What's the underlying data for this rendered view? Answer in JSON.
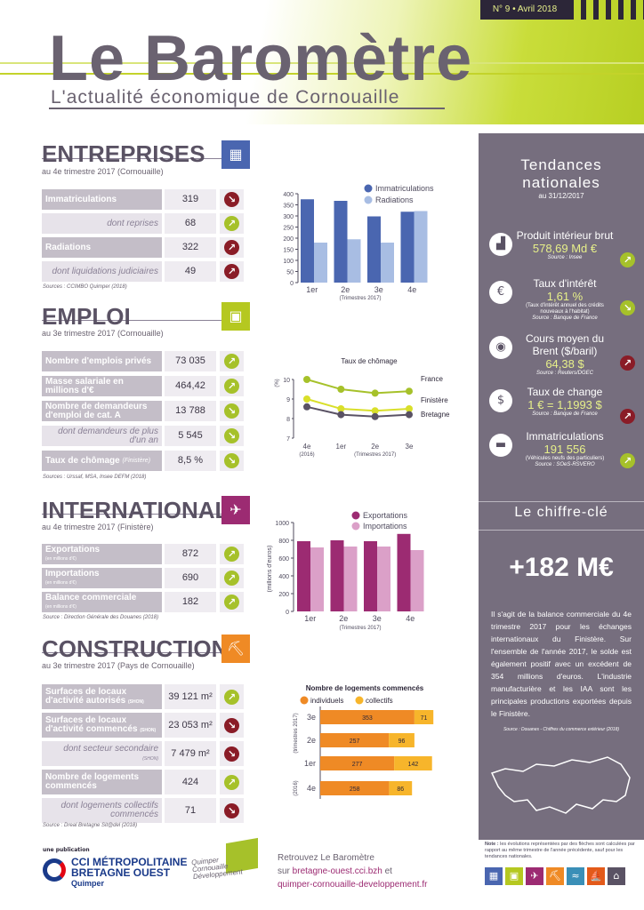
{
  "header": {
    "issue": "N° 9 • Avril 2018",
    "title": "Le Baromètre",
    "subtitle": "L'actualité économique de Cornouaille"
  },
  "entreprises": {
    "title": "ENTREPRISES",
    "period": "au 4e trimestre 2017 (Cornouaille)",
    "rows": [
      {
        "label": "Immatriculations",
        "value": "319"
      },
      {
        "label": "dont reprises",
        "value": "68"
      },
      {
        "label": "Radiations",
        "value": "322"
      },
      {
        "label": "dont liquidations judiciaires",
        "value": "49"
      }
    ],
    "source": "Sources : CCIMBO Quimper (2018)"
  },
  "emploi": {
    "title": "EMPLOI",
    "period": "au 3e trimestre 2017 (Cornouaille)",
    "rows": [
      {
        "label": "Nombre d'emplois privés",
        "value": "73 035"
      },
      {
        "label": "Masse salariale en millions d'€",
        "value": "464,42"
      },
      {
        "label": "Nombre de demandeurs d'emploi de cat. A",
        "value": "13 788"
      },
      {
        "label": "dont demandeurs de plus d'un an",
        "value": "5 545"
      },
      {
        "label": "Taux de chômage",
        "label_note": "(Finistère)",
        "value": "8,5 %"
      }
    ],
    "source": "Sources : Urssaf, MSA, Insee DEFM (2018)"
  },
  "international": {
    "title": "INTERNATIONAL",
    "period": "au 4e trimestre 2017 (Finistère)",
    "rows": [
      {
        "label": "Exportations",
        "note": "(en millions d'€)",
        "value": "872"
      },
      {
        "label": "Importations",
        "note": "(en millions d'€)",
        "value": "690"
      },
      {
        "label": "Balance commerciale",
        "note": "(en millions d'€)",
        "value": "182"
      }
    ],
    "source": "Source : Direction Générale des Douanes (2018)"
  },
  "construction": {
    "title": "CONSTRUCTION",
    "period": "au 3e trimestre 2017 (Pays de Cornouaille)",
    "rows": [
      {
        "label": "Surfaces de locaux d'activité autorisés",
        "note": "(SHON)",
        "value": "39 121 m²"
      },
      {
        "label": "Surfaces de locaux d'activité commencés",
        "note": "(SHON)",
        "value": "23 053 m²"
      },
      {
        "label": "dont secteur secondaire",
        "note": "(SHON)",
        "value": "7 479 m²"
      },
      {
        "label": "Nombre de logements commencés",
        "note": "",
        "value": "424"
      },
      {
        "label": "dont logements collectifs commencés",
        "note": "",
        "value": "71"
      }
    ],
    "source": "Source : Dreal Bretagne Sit@del (2018)"
  },
  "colors": {
    "purple": "#5a5264",
    "green": "#a6c12a",
    "red": "#8a1c27",
    "blue": "#4a66b0",
    "lightblue": "#a8bde3",
    "magenta": "#9c2b72",
    "pink": "#dba0c8",
    "orange": "#ef8a25",
    "yellow": "#f7b52b"
  },
  "chart_data": [
    {
      "type": "bar",
      "categories": [
        "1er",
        "2e",
        "3e",
        "4e"
      ],
      "xlabel": "(Trimestres 2017)",
      "series": [
        {
          "name": "Immatriculations",
          "values": [
            375,
            368,
            298,
            319
          ]
        },
        {
          "name": "Radiations",
          "values": [
            180,
            195,
            180,
            322
          ]
        }
      ],
      "ylim": [
        0,
        400
      ],
      "yticks": [
        0,
        50,
        100,
        150,
        200,
        250,
        300,
        350,
        400
      ]
    },
    {
      "type": "line",
      "title": "Taux de chômage",
      "ylabel": "(%)",
      "categories": [
        "4e",
        "1er",
        "2e",
        "3e"
      ],
      "category_notes": [
        "(2016)",
        "(Trimestres 2017)"
      ],
      "series": [
        {
          "name": "France",
          "values": [
            10.0,
            9.5,
            9.3,
            9.4
          ]
        },
        {
          "name": "Finistère",
          "values": [
            9.0,
            8.5,
            8.4,
            8.5
          ]
        },
        {
          "name": "Bretagne",
          "values": [
            8.6,
            8.2,
            8.1,
            8.2
          ]
        }
      ],
      "ylim": [
        7,
        10
      ],
      "yticks": [
        7,
        8,
        9,
        10
      ]
    },
    {
      "type": "bar",
      "categories": [
        "1er",
        "2e",
        "3e",
        "4e"
      ],
      "xlabel": "(Trimestres 2017)",
      "ylabel": "(millions d'euros)",
      "series": [
        {
          "name": "Exportations",
          "values": [
            790,
            800,
            790,
            872
          ]
        },
        {
          "name": "Importations",
          "values": [
            720,
            730,
            730,
            690
          ]
        }
      ],
      "ylim": [
        0,
        1000
      ],
      "yticks": [
        0,
        200,
        400,
        600,
        800,
        1000
      ]
    },
    {
      "type": "bar",
      "orientation": "horizontal",
      "stacked": true,
      "title": "Nombre de logements commencés",
      "categories": [
        "3e",
        "2e",
        "1er",
        "4e"
      ],
      "category_notes": [
        "(trimestres 2017)",
        "(2016)"
      ],
      "series": [
        {
          "name": "individuels",
          "values": [
            353,
            257,
            277,
            258
          ]
        },
        {
          "name": "collectifs",
          "values": [
            71,
            96,
            142,
            86
          ]
        }
      ]
    }
  ],
  "tendances": {
    "title": "Tendances nationales",
    "date": "au 31/12/2017",
    "items": [
      {
        "name": "Produit intérieur brut",
        "value": "578,69 Md €",
        "note": "",
        "source": "Source : Insee",
        "icon": "chart-icon",
        "trend": "up"
      },
      {
        "name": "Taux d'intérêt",
        "value": "1,61 %",
        "note": "(Taux d'intérêt annuel des crédits nouveaux à l'habitat)",
        "source": "Source : Banque de France",
        "icon": "euro-house-icon",
        "trend": "down"
      },
      {
        "name": "Cours moyen du Brent ($/baril)",
        "value": "64,38 $",
        "note": "",
        "source": "Source : Reuters/DGEC",
        "icon": "oil-drop-icon",
        "trend": "red-up"
      },
      {
        "name": "Taux de change",
        "value": "1 € = 1,1993 $",
        "note": "",
        "source": "Source : Banque de France",
        "icon": "currency-exchange-icon",
        "trend": "red-up"
      },
      {
        "name": "Immatriculations",
        "value": "191 556",
        "note": "(Véhicules neufs des particuliers)",
        "source": "Source : SOeS-RSVERO",
        "icon": "car-icon",
        "trend": "up"
      }
    ]
  },
  "chiffre": {
    "title": "Le chiffre-clé",
    "value": "+182 M€",
    "text": "Il s'agit de la balance commerciale du 4e trimestre 2017 pour les échanges internationaux du Finistère. Sur l'ensemble de l'année 2017, le solde est également positif avec un excédent de 354 millions d'euros. L'industrie manufacturière et les IAA sont les principales productions exportées depuis le Finistère.",
    "source": "Source : Douanes - Chiffres du commerce extérieur (2018)"
  },
  "note": {
    "label": "Note :",
    "text": " les évolutions représentées par des flèches sont calculées par rapport au même trimestre de l'année précédente, sauf pour les tendances nationales."
  },
  "footer": {
    "publication": "une publication",
    "cci1": "CCI MÉTROPOLITAINE",
    "cci2": "BRETAGNE OUEST",
    "cci3": "Quimper",
    "qcd": "Quimper Cornouaille Développement",
    "retrouvez": "Retrouvez Le Baromètre",
    "sur": "sur ",
    "site1": "bretagne-ouest.cci.bzh",
    "et": " et",
    "site2": "quimper-cornouaille-developpement.fr"
  }
}
